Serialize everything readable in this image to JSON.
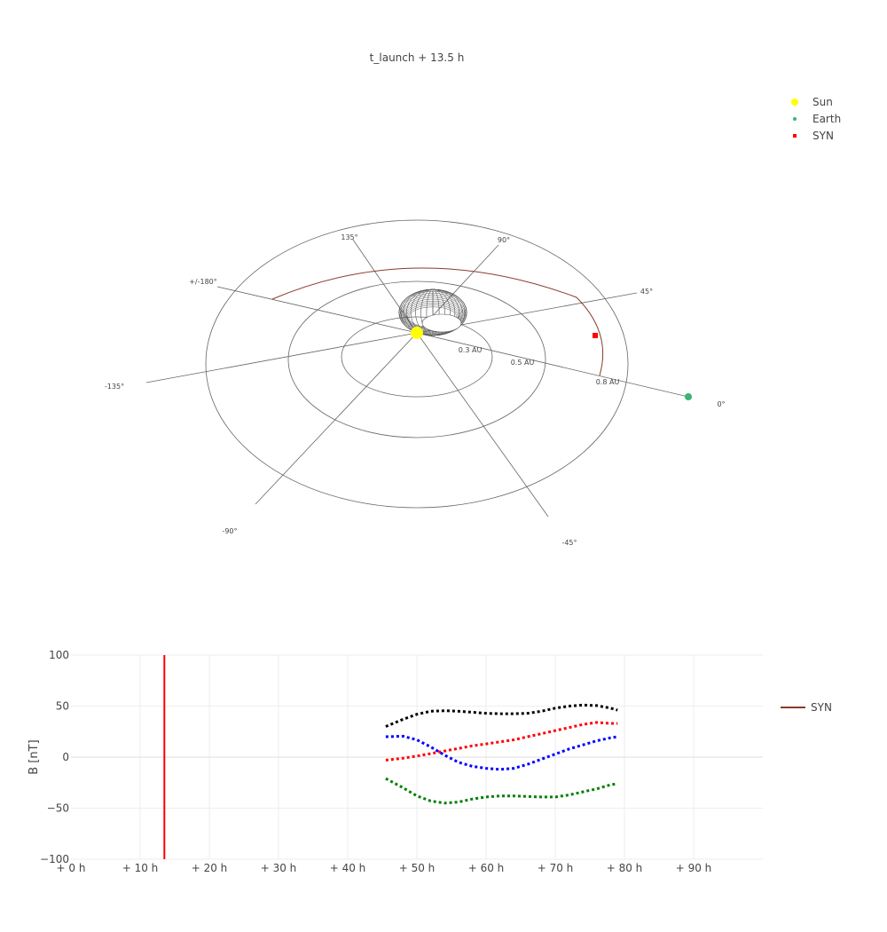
{
  "title": "t_launch + 13.5 h",
  "colors": {
    "sun": "#ffff00",
    "earth": "#3cb371",
    "syn": "#ff0000",
    "syn_orbit": "#8b3a2a",
    "cme": "#555555",
    "grid": "#666666"
  },
  "legend_3d": [
    {
      "label": "Sun",
      "color": "#ffff00",
      "symbol": "circle-large"
    },
    {
      "label": "Earth",
      "color": "#3cb371",
      "symbol": "circle-small"
    },
    {
      "label": "SYN",
      "color": "#ff0000",
      "symbol": "square-small"
    }
  ],
  "legend_2d": [
    {
      "label": "SYN",
      "color": "#8b3a2a",
      "symbol": "line"
    }
  ],
  "chart_data": [
    {
      "type": "scatter",
      "subtype": "polar-3d",
      "radial_rings_au": [
        0.3,
        0.5,
        0.8
      ],
      "ring_labels": [
        "0.3 AU",
        "0.5 AU",
        "0.8 AU"
      ],
      "angle_labels": [
        "0°",
        "45°",
        "90°",
        "135°",
        "+/-180°",
        "-135°",
        "-90°",
        "-45°"
      ],
      "points": [
        {
          "name": "Sun",
          "r": 0.0,
          "lon": 0
        },
        {
          "name": "Earth",
          "r": 1.0,
          "lon": 0
        },
        {
          "name": "SYN",
          "r": 0.8,
          "lon": 17
        }
      ]
    },
    {
      "type": "line",
      "ylabel": "B [nT]",
      "xlabel": "",
      "xlim": [
        0,
        100
      ],
      "ylim": [
        -100,
        100
      ],
      "x_ticks": [
        0,
        10,
        20,
        30,
        40,
        50,
        60,
        70,
        80,
        90
      ],
      "x_tick_labels": [
        "+ 0 h",
        "+ 10 h",
        "+ 20 h",
        "+ 30 h",
        "+ 40 h",
        "+ 50 h",
        "+ 60 h",
        "+ 70 h",
        "+ 80 h",
        "+ 90 h"
      ],
      "y_ticks": [
        -100,
        -50,
        0,
        50,
        100
      ],
      "y_tick_labels": [
        "−100",
        "−50",
        "0",
        "50",
        "100"
      ],
      "vline": {
        "x": 13.5,
        "color": "#ff0000"
      },
      "series": [
        {
          "color": "#000000",
          "x": [
            45.5,
            48,
            50,
            52,
            54,
            56,
            58,
            60,
            62,
            64,
            66,
            68,
            70,
            72,
            74,
            76,
            78,
            79
          ],
          "y": [
            30,
            37,
            42,
            45,
            45.5,
            45,
            44,
            43,
            42.5,
            42.5,
            43,
            45,
            48,
            50,
            51,
            50.5,
            48,
            46
          ]
        },
        {
          "color": "#ff0000",
          "x": [
            45.5,
            48,
            50,
            52,
            54,
            56,
            58,
            60,
            62,
            64,
            66,
            68,
            70,
            72,
            74,
            76,
            78,
            79
          ],
          "y": [
            -3,
            -1,
            1,
            3.5,
            6,
            8.5,
            11,
            13,
            15,
            17,
            20,
            23,
            26,
            29,
            32,
            34,
            33,
            33
          ]
        },
        {
          "color": "#0000ff",
          "x": [
            45.5,
            48,
            50,
            52,
            54,
            56,
            58,
            60,
            62,
            64,
            66,
            68,
            70,
            72,
            74,
            76,
            78,
            79
          ],
          "y": [
            20,
            20.5,
            17,
            10,
            2,
            -5,
            -9,
            -11,
            -12,
            -11,
            -7,
            -2,
            3,
            8,
            12,
            16,
            19,
            20
          ]
        },
        {
          "color": "#008000",
          "x": [
            45.5,
            48,
            50,
            52,
            54,
            56,
            58,
            60,
            62,
            64,
            66,
            68,
            70,
            72,
            74,
            76,
            78,
            79
          ],
          "y": [
            -21,
            -30,
            -38,
            -43,
            -45,
            -44,
            -41,
            -39,
            -38,
            -38,
            -38.5,
            -39,
            -39,
            -37,
            -34,
            -31,
            -27,
            -26
          ]
        }
      ]
    }
  ]
}
